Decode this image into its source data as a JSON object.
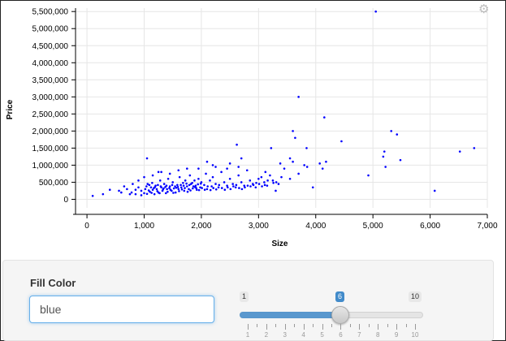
{
  "chart_data": {
    "type": "scatter",
    "xlabel": "Size",
    "ylabel": "Price",
    "xlim": [
      -200,
      7000
    ],
    "ylim": [
      -250000,
      5600000
    ],
    "x_ticks": [
      0,
      1000,
      2000,
      3000,
      4000,
      5000,
      6000,
      7000
    ],
    "x_tick_labels": [
      "0",
      "1,000",
      "2,000",
      "3,000",
      "4,000",
      "5,000",
      "6,000",
      "7,000"
    ],
    "y_ticks": [
      0,
      500000,
      1000000,
      1500000,
      2000000,
      2500000,
      3000000,
      3500000,
      4000000,
      4500000,
      5000000,
      5500000
    ],
    "y_tick_labels": [
      "0",
      "500,000",
      "1,000,000",
      "1,500,000",
      "2,000,000",
      "2,500,000",
      "3,000,000",
      "3,500,000",
      "4,000,000",
      "4,500,000",
      "5,000,000",
      "5,500,000"
    ],
    "grid": true,
    "point_color": "#0000ff",
    "points": [
      [
        5050,
        5500000
      ],
      [
        3700,
        3000000
      ],
      [
        4150,
        2400000
      ],
      [
        3600,
        2000000
      ],
      [
        5320,
        2000000
      ],
      [
        5420,
        1900000
      ],
      [
        3640,
        1800000
      ],
      [
        4450,
        1700000
      ],
      [
        2620,
        1600000
      ],
      [
        5200,
        1400000
      ],
      [
        3840,
        1500000
      ],
      [
        3220,
        1500000
      ],
      [
        6770,
        1500000
      ],
      [
        6520,
        1400000
      ],
      [
        5180,
        1250000
      ],
      [
        5480,
        1150000
      ],
      [
        4180,
        1100000
      ],
      [
        3380,
        1050000
      ],
      [
        4070,
        1050000
      ],
      [
        4120,
        900000
      ],
      [
        4920,
        700000
      ],
      [
        5220,
        950000
      ],
      [
        3950,
        350000
      ],
      [
        6080,
        250000
      ],
      [
        3550,
        600000
      ],
      [
        3300,
        250000
      ],
      [
        1050,
        1200000
      ],
      [
        1250,
        800000
      ],
      [
        1950,
        900000
      ],
      [
        2100,
        1100000
      ],
      [
        2200,
        1000000
      ],
      [
        2700,
        1200000
      ],
      [
        3050,
        650000
      ],
      [
        3120,
        800000
      ],
      [
        3450,
        900000
      ],
      [
        3850,
        950000
      ],
      [
        3700,
        750000
      ],
      [
        3200,
        700000
      ],
      [
        100,
        100000
      ],
      [
        280,
        150000
      ],
      [
        400,
        280000
      ],
      [
        560,
        250000
      ],
      [
        650,
        380000
      ],
      [
        700,
        300000
      ],
      [
        780,
        200000
      ],
      [
        800,
        450000
      ],
      [
        850,
        150000
      ],
      [
        900,
        350000
      ],
      [
        950,
        250000
      ],
      [
        1000,
        180000
      ],
      [
        1020,
        300000
      ],
      [
        1060,
        450000
      ],
      [
        1100,
        220000
      ],
      [
        1120,
        350000
      ],
      [
        1150,
        280000
      ],
      [
        1180,
        150000
      ],
      [
        1200,
        400000
      ],
      [
        1220,
        300000
      ],
      [
        1250,
        200000
      ],
      [
        1280,
        550000
      ],
      [
        1300,
        350000
      ],
      [
        1320,
        250000
      ],
      [
        1350,
        450000
      ],
      [
        1380,
        180000
      ],
      [
        1400,
        300000
      ],
      [
        1420,
        600000
      ],
      [
        1450,
        380000
      ],
      [
        1480,
        250000
      ],
      [
        1500,
        500000
      ],
      [
        1520,
        320000
      ],
      [
        1550,
        200000
      ],
      [
        1580,
        420000
      ],
      [
        1600,
        300000
      ],
      [
        1620,
        650000
      ],
      [
        1650,
        350000
      ],
      [
        1680,
        480000
      ],
      [
        1700,
        250000
      ],
      [
        1720,
        550000
      ],
      [
        1750,
        380000
      ],
      [
        1780,
        300000
      ],
      [
        1800,
        700000
      ],
      [
        1820,
        450000
      ],
      [
        1850,
        320000
      ],
      [
        1880,
        550000
      ],
      [
        1900,
        400000
      ],
      [
        1920,
        280000
      ],
      [
        1950,
        600000
      ],
      [
        1980,
        350000
      ],
      [
        2000,
        500000
      ],
      [
        2050,
        420000
      ],
      [
        2080,
        750000
      ],
      [
        2100,
        300000
      ],
      [
        2150,
        550000
      ],
      [
        2180,
        380000
      ],
      [
        2200,
        650000
      ],
      [
        2250,
        450000
      ],
      [
        2300,
        350000
      ],
      [
        2350,
        800000
      ],
      [
        2400,
        500000
      ],
      [
        2450,
        400000
      ],
      [
        2500,
        600000
      ],
      [
        2550,
        450000
      ],
      [
        2600,
        350000
      ],
      [
        2650,
        700000
      ],
      [
        2700,
        500000
      ],
      [
        2750,
        400000
      ],
      [
        2800,
        850000
      ],
      [
        2850,
        550000
      ],
      [
        2900,
        450000
      ],
      [
        2950,
        350000
      ],
      [
        3000,
        600000
      ],
      [
        3100,
        500000
      ],
      [
        3150,
        400000
      ],
      [
        3250,
        550000
      ],
      [
        3350,
        450000
      ],
      [
        3400,
        650000
      ],
      [
        900,
        550000
      ],
      [
        1000,
        650000
      ],
      [
        1150,
        700000
      ],
      [
        1300,
        800000
      ],
      [
        1450,
        750000
      ],
      [
        1600,
        850000
      ],
      [
        1750,
        900000
      ],
      [
        2250,
        950000
      ],
      [
        2500,
        1050000
      ],
      [
        2650,
        950000
      ],
      [
        2450,
        900000
      ],
      [
        3550,
        1200000
      ],
      [
        3600,
        1100000
      ],
      [
        3800,
        1000000
      ],
      [
        600,
        200000
      ],
      [
        750,
        150000
      ],
      [
        850,
        280000
      ],
      [
        950,
        120000
      ],
      [
        1050,
        160000
      ],
      [
        1080,
        260000
      ],
      [
        1130,
        190000
      ],
      [
        1170,
        330000
      ],
      [
        1230,
        240000
      ],
      [
        1270,
        180000
      ],
      [
        1330,
        290000
      ],
      [
        1370,
        360000
      ],
      [
        1410,
        220000
      ],
      [
        1460,
        280000
      ],
      [
        1510,
        190000
      ],
      [
        1560,
        340000
      ],
      [
        1610,
        240000
      ],
      [
        1660,
        290000
      ],
      [
        1710,
        330000
      ],
      [
        1760,
        220000
      ],
      [
        1810,
        260000
      ],
      [
        1860,
        380000
      ],
      [
        1910,
        330000
      ],
      [
        1960,
        270000
      ],
      [
        2010,
        330000
      ],
      [
        2060,
        280000
      ],
      [
        2110,
        380000
      ],
      [
        2160,
        270000
      ],
      [
        2210,
        330000
      ],
      [
        2260,
        290000
      ],
      [
        2310,
        420000
      ],
      [
        2360,
        330000
      ],
      [
        2410,
        280000
      ],
      [
        2460,
        350000
      ],
      [
        2510,
        300000
      ],
      [
        2560,
        380000
      ],
      [
        2610,
        420000
      ],
      [
        2660,
        330000
      ],
      [
        2710,
        300000
      ],
      [
        2760,
        350000
      ],
      [
        2810,
        400000
      ],
      [
        2860,
        380000
      ],
      [
        2910,
        420000
      ],
      [
        2960,
        480000
      ],
      [
        3010,
        450000
      ],
      [
        3060,
        380000
      ],
      [
        3110,
        420000
      ],
      [
        3160,
        550000
      ],
      [
        3260,
        480000
      ],
      [
        3310,
        500000
      ],
      [
        1040,
        380000
      ],
      [
        1090,
        420000
      ],
      [
        1140,
        480000
      ],
      [
        1190,
        360000
      ],
      [
        1240,
        420000
      ],
      [
        1290,
        380000
      ],
      [
        1340,
        320000
      ],
      [
        1390,
        400000
      ],
      [
        1440,
        330000
      ],
      [
        1490,
        420000
      ],
      [
        1540,
        380000
      ],
      [
        1590,
        360000
      ],
      [
        1640,
        420000
      ],
      [
        1690,
        400000
      ],
      [
        1740,
        460000
      ],
      [
        1790,
        420000
      ],
      [
        1840,
        480000
      ],
      [
        1890,
        360000
      ],
      [
        1940,
        440000
      ],
      [
        1990,
        460000
      ]
    ]
  },
  "settings": {
    "gear_icon": "gear-icon"
  },
  "controls": {
    "fill_label": "Fill Color",
    "fill_value": "blue",
    "slider": {
      "min": 1,
      "max": 10,
      "value": 6,
      "min_label": "1",
      "max_label": "10",
      "value_label": "6",
      "tick_labels": [
        "1",
        "2",
        "3",
        "4",
        "5",
        "6",
        "7",
        "8",
        "9",
        "10"
      ]
    }
  }
}
